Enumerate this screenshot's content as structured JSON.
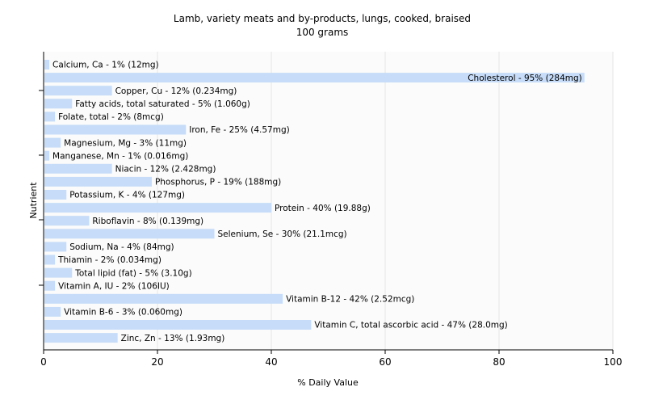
{
  "chart_data": {
    "type": "bar",
    "orientation": "horizontal",
    "title": "Lamb, variety meats and by-products, lungs, cooked, braised",
    "subtitle": "100 grams",
    "xlabel": "% Daily Value",
    "ylabel": "Nutrient",
    "xlim": [
      0,
      100
    ],
    "xticks": [
      0,
      20,
      40,
      60,
      80,
      100
    ],
    "grid": true,
    "bar_color": "#c6dcf8",
    "categories": [
      "Calcium, Ca",
      "Cholesterol",
      "Copper, Cu",
      "Fatty acids, total saturated",
      "Folate, total",
      "Iron, Fe",
      "Magnesium, Mg",
      "Manganese, Mn",
      "Niacin",
      "Phosphorus, P",
      "Potassium, K",
      "Protein",
      "Riboflavin",
      "Selenium, Se",
      "Sodium, Na",
      "Thiamin",
      "Total lipid (fat)",
      "Vitamin A, IU",
      "Vitamin B-12",
      "Vitamin B-6",
      "Vitamin C, total ascorbic acid",
      "Zinc, Zn"
    ],
    "values": [
      1,
      95,
      12,
      5,
      2,
      25,
      3,
      1,
      12,
      19,
      4,
      40,
      8,
      30,
      4,
      2,
      5,
      2,
      42,
      3,
      47,
      13
    ],
    "labels": [
      "Calcium, Ca - 1% (12mg)",
      "Cholesterol - 95% (284mg)",
      "Copper, Cu - 12% (0.234mg)",
      "Fatty acids, total saturated - 5% (1.060g)",
      "Folate, total - 2% (8mcg)",
      "Iron, Fe - 25% (4.57mg)",
      "Magnesium, Mg - 3% (11mg)",
      "Manganese, Mn - 1% (0.016mg)",
      "Niacin - 12% (2.428mg)",
      "Phosphorus, P - 19% (188mg)",
      "Potassium, K - 4% (127mg)",
      "Protein - 40% (19.88g)",
      "Riboflavin - 8% (0.139mg)",
      "Selenium, Se - 30% (21.1mcg)",
      "Sodium, Na - 4% (84mg)",
      "Thiamin - 2% (0.034mg)",
      "Total lipid (fat) - 5% (3.10g)",
      "Vitamin A, IU - 2% (106IU)",
      "Vitamin B-12 - 42% (2.52mcg)",
      "Vitamin B-6 - 3% (0.060mg)",
      "Vitamin C, total ascorbic acid - 47% (28.0mg)",
      "Zinc, Zn - 13% (1.93mg)"
    ]
  }
}
